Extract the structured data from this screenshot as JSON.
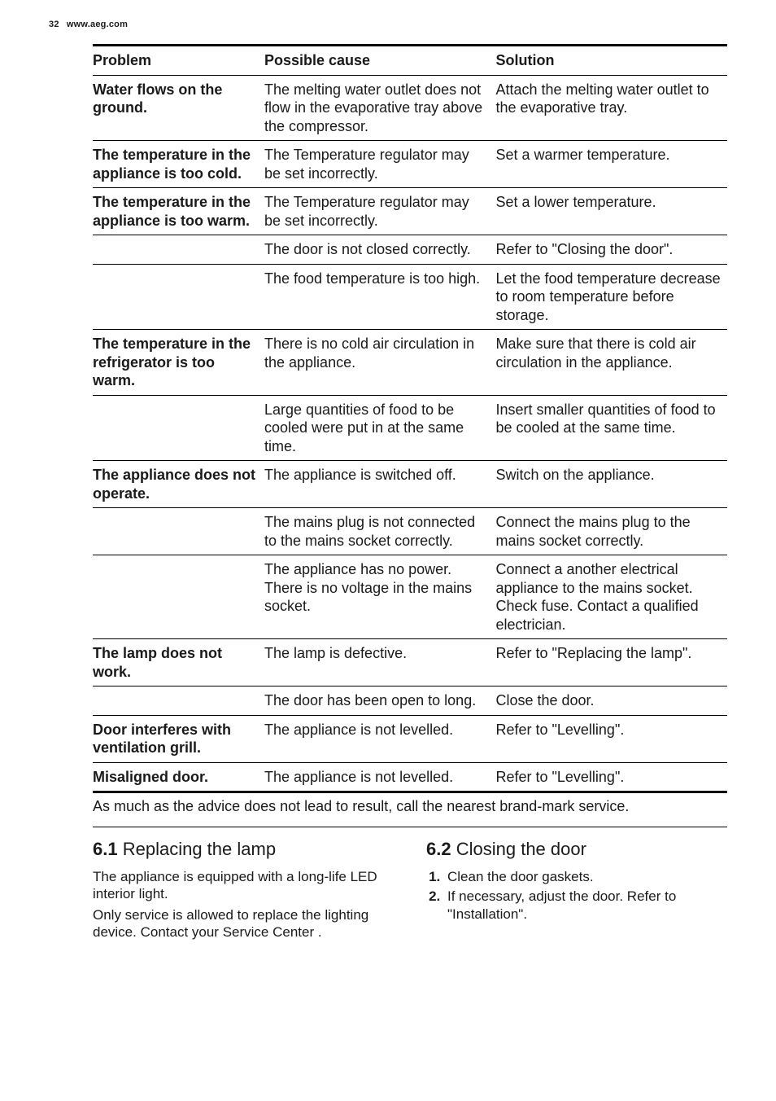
{
  "header": {
    "page_number": "32",
    "site": "www.aeg.com"
  },
  "table": {
    "headers": [
      "Problem",
      "Possible cause",
      "Solution"
    ],
    "rows": [
      {
        "problem": "Water flows on the ground.",
        "cause": "The melting water outlet does not flow in the evaporative tray above the compressor.",
        "solution": "Attach the melting water outlet to the evaporative tray."
      },
      {
        "problem": "The temperature in the appliance is too cold.",
        "cause": "The Temperature regulator may be set incorrectly.",
        "solution": "Set a warmer temperature."
      },
      {
        "problem": "The temperature in the appliance is too warm.",
        "cause": "The Temperature regulator may be set incorrectly.",
        "solution": "Set a lower temperature."
      },
      {
        "problem": "",
        "cause": "The door is not closed correctly.",
        "solution": "Refer to \"Closing the door\"."
      },
      {
        "problem": "",
        "cause": "The food temperature is too high.",
        "solution": "Let the food temperature decrease to room temperature before storage."
      },
      {
        "problem": "The temperature in the refrigerator is too warm.",
        "cause": "There is no cold air circulation in the appliance.",
        "solution": "Make sure that there is cold air circulation in the appliance."
      },
      {
        "problem": "",
        "cause": "Large quantities of food to be cooled were put in at the same time.",
        "solution": "Insert smaller quantities of food to be cooled at the same time."
      },
      {
        "problem": "The appliance does not operate.",
        "cause": "The appliance is switched off.",
        "solution": "Switch on the appliance."
      },
      {
        "problem": "",
        "cause": "The mains plug is not connected to the mains socket correctly.",
        "solution": "Connect the mains plug to the mains socket correctly."
      },
      {
        "problem": "",
        "cause": "The appliance has no power. There is no voltage in the mains socket.",
        "solution": "Connect a another electrical appliance to the mains socket. Check fuse. Contact a qualified electrician."
      },
      {
        "problem": "The lamp does not work.",
        "cause": "The lamp is defective.",
        "solution": "Refer to \"Replacing the lamp\"."
      },
      {
        "problem": "",
        "cause": "The door has been open to long.",
        "solution": "Close the door."
      },
      {
        "problem": "Door interferes with ventilation grill.",
        "cause": "The appliance is not levelled.",
        "solution": "Refer to \"Levelling\"."
      },
      {
        "problem": "Misaligned door.",
        "cause": "The appliance is not levelled.",
        "solution": "Refer to \"Levelling\"."
      }
    ]
  },
  "footnote": "As much as the advice does not lead to result, call the nearest brand-mark service.",
  "section_left": {
    "number": "6.1",
    "title": "Replacing the lamp",
    "body1": "The appliance is equipped with a long-life LED interior light.",
    "body2": "Only service is allowed to replace the lighting device. Contact your Service Center ."
  },
  "section_right": {
    "number": "6.2",
    "title": "Closing the door",
    "steps": [
      "Clean the door gaskets.",
      "If necessary, adjust the door. Refer to \"Installation\"."
    ]
  }
}
